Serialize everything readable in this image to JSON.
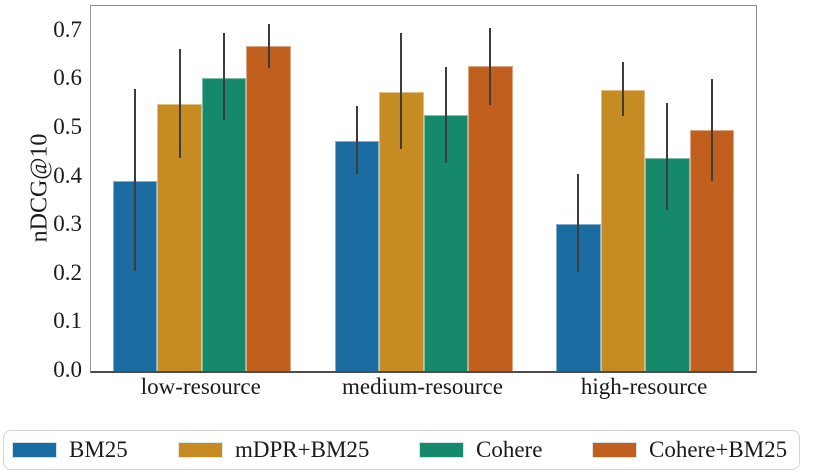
{
  "figure": {
    "background": "#ffffff",
    "text_color": "#1a1a1a",
    "spine_color": "#8c8c8c",
    "error_bar_color": "#3d3d3d"
  },
  "chart_data": {
    "type": "bar",
    "title": "",
    "xlabel": "",
    "ylabel": "nDCG@10",
    "ylim": [
      0.0,
      0.751
    ],
    "yticks": [
      0.0,
      0.1,
      0.2,
      0.3,
      0.4,
      0.5,
      0.6,
      0.7
    ],
    "grid": false,
    "legend_position": "bottom",
    "categories": [
      "low-resource",
      "medium-resource",
      "high-resource"
    ],
    "series": [
      {
        "name": "BM25",
        "color": "#1b6ca1",
        "values": [
          0.39,
          0.473,
          0.303
        ],
        "err_low": [
          0.206,
          0.405,
          0.203
        ],
        "err_high": [
          0.581,
          0.545,
          0.406
        ]
      },
      {
        "name": "mDPR+BM25",
        "color": "#c78b23",
        "values": [
          0.549,
          0.575,
          0.578
        ],
        "err_low": [
          0.439,
          0.456,
          0.525
        ],
        "err_high": [
          0.662,
          0.695,
          0.636
        ]
      },
      {
        "name": "Cohere",
        "color": "#16896a",
        "values": [
          0.603,
          0.526,
          0.438
        ],
        "err_low": [
          0.516,
          0.429,
          0.331
        ],
        "err_high": [
          0.696,
          0.625,
          0.551
        ]
      },
      {
        "name": "Cohere+BM25",
        "color": "#c05f1e",
        "values": [
          0.669,
          0.628,
          0.495
        ],
        "err_low": [
          0.624,
          0.547,
          0.392
        ],
        "err_high": [
          0.715,
          0.706,
          0.6
        ]
      }
    ]
  }
}
